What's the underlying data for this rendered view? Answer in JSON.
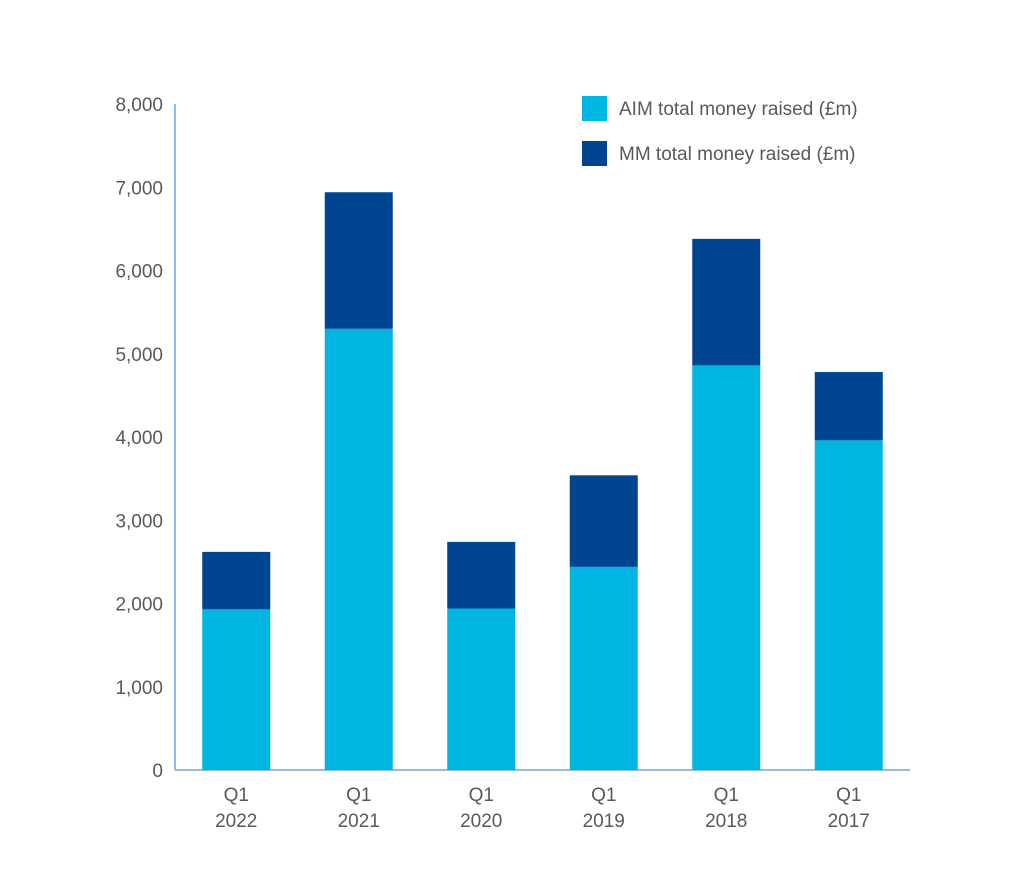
{
  "chart_data": {
    "type": "bar",
    "stacked": true,
    "categories": [
      [
        "Q1",
        "2022"
      ],
      [
        "Q1",
        "2021"
      ],
      [
        "Q1",
        "2020"
      ],
      [
        "Q1",
        "2019"
      ],
      [
        "Q1",
        "2018"
      ],
      [
        "Q1",
        "2017"
      ]
    ],
    "series": [
      {
        "name": "AIM total money raised (£m)",
        "color": "#00b5e2",
        "values": [
          1930,
          5300,
          1940,
          2440,
          4860,
          3960
        ]
      },
      {
        "name": "MM total money raised (£m)",
        "color": "#004592",
        "values": [
          690,
          1640,
          800,
          1100,
          1520,
          820
        ]
      }
    ],
    "ylim": [
      0,
      8000
    ],
    "yticks": [
      0,
      1000,
      2000,
      3000,
      4000,
      5000,
      6000,
      7000,
      8000
    ],
    "ytick_labels": [
      "0",
      "1,000",
      "2,000",
      "3,000",
      "4,000",
      "5,000",
      "6,000",
      "7,000",
      "8,000"
    ],
    "axis_color": "#6fa8dc",
    "grid": false,
    "legend_position": "top-right",
    "title": "",
    "xlabel": "",
    "ylabel": ""
  }
}
